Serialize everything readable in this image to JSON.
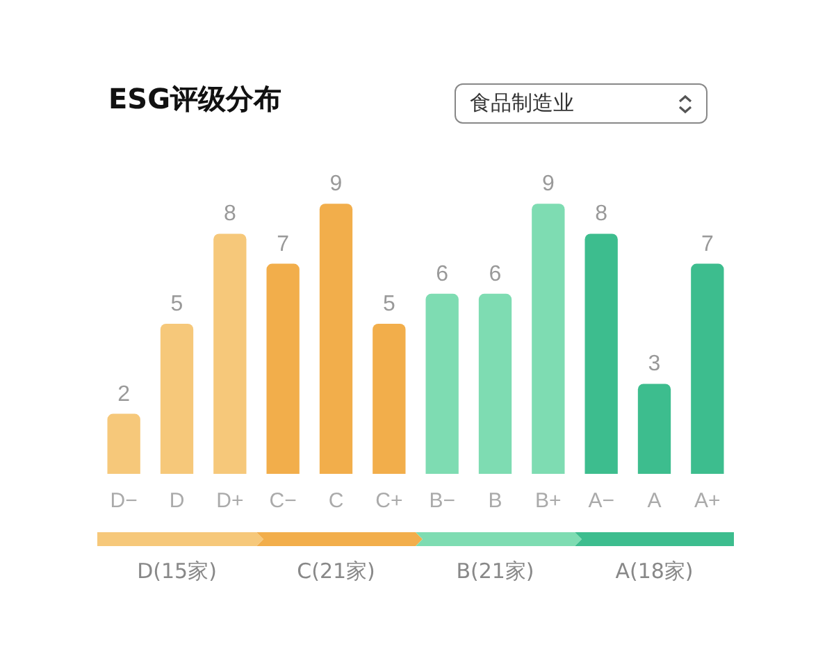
{
  "chart_data": {
    "type": "bar",
    "title": "ESG评级分布",
    "categories": [
      "D−",
      "D",
      "D+",
      "C−",
      "C",
      "C+",
      "B−",
      "B",
      "B+",
      "A−",
      "A",
      "A+"
    ],
    "values": [
      2,
      5,
      8,
      7,
      9,
      5,
      6,
      6,
      9,
      8,
      3,
      7
    ],
    "colors": [
      "#f6c87a",
      "#f6c87a",
      "#f6c87a",
      "#f2ae4b",
      "#f2ae4b",
      "#f2ae4b",
      "#7edcb2",
      "#7edcb2",
      "#7edcb2",
      "#3dbd8e",
      "#3dbd8e",
      "#3dbd8e"
    ],
    "data_labels": true,
    "annotations": [
      "食品制造业",
      "D(15家)",
      "C(21家)",
      "B(21家)",
      "A(18家)"
    ]
  }
}
